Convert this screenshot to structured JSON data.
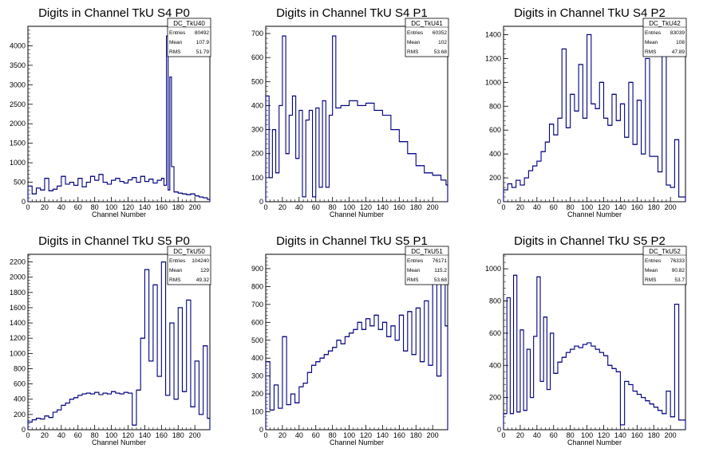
{
  "chart_data": [
    {
      "type": "histogram",
      "title": "Digits in Channel TkU S4 P0",
      "xlabel": "Channel Number",
      "ylabel": "",
      "xlim": [
        0,
        218
      ],
      "ylim": [
        0,
        4500
      ],
      "xticks": [
        0,
        20,
        40,
        60,
        80,
        100,
        120,
        140,
        160,
        180,
        200
      ],
      "yticks": [
        500,
        1000,
        1500,
        2000,
        2500,
        3000,
        3500,
        4000
      ],
      "stats": {
        "name": "DC_TkU40",
        "rows": [
          {
            "label": "Entries",
            "value": "80492"
          },
          {
            "label": "Mean",
            "value": "107.9"
          },
          {
            "label": "RMS",
            "value": "51.79"
          }
        ]
      },
      "x": [
        0,
        5,
        10,
        15,
        20,
        25,
        30,
        35,
        40,
        45,
        50,
        55,
        60,
        65,
        70,
        75,
        80,
        85,
        90,
        95,
        100,
        105,
        110,
        115,
        120,
        125,
        130,
        135,
        140,
        145,
        150,
        155,
        160,
        163,
        166,
        168,
        170,
        172,
        175,
        180,
        185,
        190,
        195,
        200,
        205,
        210,
        215
      ],
      "values": [
        400,
        200,
        350,
        300,
        600,
        280,
        320,
        400,
        650,
        450,
        500,
        420,
        600,
        380,
        500,
        650,
        550,
        700,
        500,
        450,
        550,
        600,
        520,
        480,
        560,
        620,
        500,
        650,
        520,
        580,
        480,
        550,
        600,
        420,
        4250,
        300,
        3200,
        900,
        250,
        220,
        200,
        180,
        200,
        150,
        120,
        100,
        60
      ]
    },
    {
      "type": "histogram",
      "title": "Digits in Channel TkU S4 P1",
      "xlabel": "Channel Number",
      "ylabel": "",
      "xlim": [
        0,
        218
      ],
      "ylim": [
        0,
        730
      ],
      "xticks": [
        0,
        20,
        40,
        60,
        80,
        100,
        120,
        140,
        160,
        180,
        200
      ],
      "yticks": [
        100,
        200,
        300,
        400,
        500,
        600,
        700
      ],
      "stats": {
        "name": "DC_TkU41",
        "rows": [
          {
            "label": "Entries",
            "value": "60352"
          },
          {
            "label": "Mean",
            "value": "102"
          },
          {
            "label": "RMS",
            "value": "53.68"
          }
        ]
      },
      "x": [
        0,
        4,
        8,
        12,
        16,
        20,
        24,
        28,
        32,
        36,
        40,
        44,
        48,
        52,
        56,
        60,
        64,
        68,
        72,
        76,
        80,
        84,
        90,
        100,
        110,
        120,
        130,
        140,
        150,
        160,
        170,
        180,
        190,
        200,
        210,
        216
      ],
      "values": [
        440,
        100,
        300,
        120,
        400,
        690,
        200,
        360,
        440,
        180,
        380,
        20,
        340,
        380,
        20,
        390,
        60,
        420,
        60,
        360,
        690,
        390,
        400,
        420,
        400,
        410,
        380,
        360,
        300,
        250,
        200,
        150,
        120,
        110,
        90,
        70
      ]
    },
    {
      "type": "histogram",
      "title": "Digits in Channel TkU S4 P2",
      "xlabel": "Channel Number",
      "ylabel": "",
      "xlim": [
        0,
        218
      ],
      "ylim": [
        0,
        1470
      ],
      "xticks": [
        0,
        20,
        40,
        60,
        80,
        100,
        120,
        140,
        160,
        180,
        200
      ],
      "yticks": [
        200,
        400,
        600,
        800,
        1000,
        1200,
        1400
      ],
      "stats": {
        "name": "DC_TkU42",
        "rows": [
          {
            "label": "Entries",
            "value": "83039"
          },
          {
            "label": "Mean",
            "value": "108"
          },
          {
            "label": "RMS",
            "value": "47.89"
          }
        ]
      },
      "x": [
        0,
        5,
        10,
        15,
        20,
        25,
        30,
        35,
        40,
        45,
        50,
        55,
        60,
        65,
        70,
        75,
        80,
        85,
        90,
        95,
        100,
        105,
        110,
        115,
        120,
        125,
        130,
        135,
        140,
        145,
        150,
        155,
        160,
        165,
        170,
        175,
        180,
        185,
        190,
        195,
        200,
        205,
        210
      ],
      "values": [
        100,
        150,
        120,
        180,
        140,
        200,
        260,
        300,
        340,
        420,
        500,
        650,
        560,
        700,
        1280,
        620,
        900,
        760,
        1150,
        700,
        1400,
        820,
        780,
        1000,
        700,
        640,
        900,
        680,
        820,
        540,
        1000,
        480,
        850,
        400,
        1200,
        380,
        380,
        250,
        1300,
        140,
        120,
        520,
        40
      ]
    },
    {
      "type": "histogram",
      "title": "Digits in Channel TkU S5 P0",
      "xlabel": "Channel Number",
      "ylabel": "",
      "xlim": [
        0,
        218
      ],
      "ylim": [
        0,
        2300
      ],
      "xticks": [
        0,
        20,
        40,
        60,
        80,
        100,
        120,
        140,
        160,
        180,
        200
      ],
      "yticks": [
        200,
        400,
        600,
        800,
        1000,
        1200,
        1400,
        1600,
        1800,
        2000,
        2200
      ],
      "stats": {
        "name": "DC_TkU50",
        "rows": [
          {
            "label": "Entries",
            "value": "104240"
          },
          {
            "label": "Mean",
            "value": "129"
          },
          {
            "label": "RMS",
            "value": "49.32"
          }
        ]
      },
      "x": [
        0,
        5,
        10,
        15,
        20,
        25,
        30,
        35,
        40,
        45,
        50,
        55,
        60,
        65,
        70,
        75,
        80,
        85,
        90,
        95,
        100,
        105,
        110,
        115,
        120,
        125,
        130,
        135,
        140,
        145,
        150,
        155,
        160,
        165,
        170,
        175,
        180,
        185,
        190,
        195,
        200,
        205,
        210,
        215
      ],
      "values": [
        100,
        130,
        150,
        140,
        180,
        160,
        230,
        260,
        320,
        350,
        400,
        420,
        450,
        470,
        480,
        470,
        490,
        460,
        480,
        470,
        500,
        480,
        470,
        490,
        480,
        60,
        520,
        1200,
        2100,
        900,
        1900,
        700,
        2200,
        450,
        1400,
        400,
        1600,
        500,
        1700,
        300,
        900,
        200,
        1100,
        150
      ]
    },
    {
      "type": "histogram",
      "title": "Digits in Channel TkU S5 P1",
      "xlabel": "Channel Number",
      "ylabel": "",
      "xlim": [
        0,
        218
      ],
      "ylim": [
        0,
        980
      ],
      "xticks": [
        0,
        20,
        40,
        60,
        80,
        100,
        120,
        140,
        160,
        180,
        200
      ],
      "yticks": [
        100,
        200,
        300,
        400,
        500,
        600,
        700,
        800,
        900
      ],
      "stats": {
        "name": "DC_TkU51",
        "rows": [
          {
            "label": "Entries",
            "value": "76171"
          },
          {
            "label": "Mean",
            "value": "115.2"
          },
          {
            "label": "RMS",
            "value": "53.68"
          }
        ]
      },
      "x": [
        0,
        5,
        10,
        15,
        20,
        25,
        30,
        35,
        40,
        45,
        50,
        55,
        60,
        65,
        70,
        75,
        80,
        85,
        90,
        95,
        100,
        105,
        110,
        115,
        120,
        125,
        130,
        135,
        140,
        145,
        150,
        155,
        160,
        165,
        170,
        175,
        180,
        185,
        190,
        195,
        200,
        205,
        210,
        215
      ],
      "values": [
        380,
        110,
        250,
        120,
        520,
        140,
        200,
        150,
        240,
        260,
        320,
        360,
        380,
        400,
        420,
        440,
        460,
        500,
        480,
        520,
        540,
        560,
        600,
        560,
        620,
        580,
        640,
        560,
        600,
        520,
        580,
        500,
        640,
        440,
        660,
        420,
        680,
        380,
        720,
        360,
        840,
        300,
        900,
        580
      ]
    },
    {
      "type": "histogram",
      "title": "Digits in Channel TkU S5 P2",
      "xlabel": "Channel Number",
      "ylabel": "",
      "xlim": [
        0,
        218
      ],
      "ylim": [
        0,
        1090
      ],
      "xticks": [
        0,
        20,
        40,
        60,
        80,
        100,
        120,
        140,
        160,
        180,
        200
      ],
      "yticks": [
        200,
        400,
        600,
        800,
        1000
      ],
      "stats": {
        "name": "DC_TkU52",
        "rows": [
          {
            "label": "Entries",
            "value": "76333"
          },
          {
            "label": "Mean",
            "value": "90.82"
          },
          {
            "label": "RMS",
            "value": "53.7"
          }
        ]
      },
      "x": [
        0,
        4,
        8,
        12,
        16,
        20,
        24,
        28,
        32,
        36,
        40,
        44,
        48,
        52,
        56,
        60,
        65,
        70,
        75,
        80,
        85,
        90,
        95,
        100,
        105,
        110,
        115,
        120,
        125,
        130,
        135,
        140,
        145,
        150,
        155,
        160,
        165,
        170,
        175,
        180,
        185,
        190,
        195,
        200,
        205,
        210
      ],
      "values": [
        100,
        820,
        100,
        960,
        110,
        620,
        120,
        500,
        200,
        580,
        950,
        300,
        700,
        250,
        600,
        350,
        420,
        450,
        480,
        500,
        520,
        510,
        530,
        540,
        520,
        500,
        480,
        460,
        400,
        380,
        360,
        30,
        300,
        280,
        240,
        220,
        200,
        180,
        160,
        140,
        120,
        100,
        240,
        80,
        780,
        60
      ]
    }
  ]
}
